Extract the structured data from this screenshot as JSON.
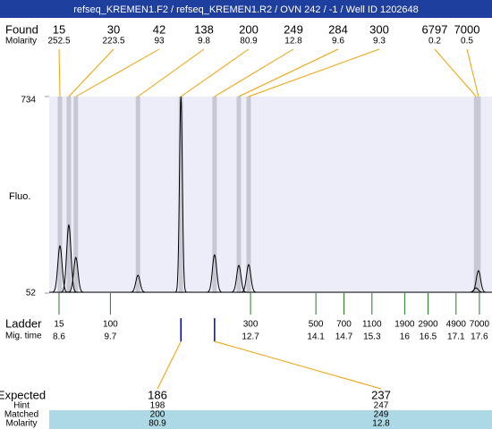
{
  "chart_data": {
    "type": "electropherogram",
    "title": "refseq_KREMEN1.F2 / refseq_KREMEN1.R2 / OVN 242 / -1 / Well ID 1202648",
    "found_label": "Found",
    "molarity_label": "Molarity",
    "y_label": "Fluo.",
    "ylim": [
      52,
      734
    ],
    "yticks": [
      52,
      734
    ],
    "xlim": [
      8.39,
      17.87
    ],
    "fragments": [
      {
        "size": 15,
        "molarity": 252.5,
        "time": 8.62,
        "height": 216
      },
      {
        "size": 30,
        "molarity": 223.5,
        "time": 8.81,
        "height": 288
      },
      {
        "size": 42,
        "molarity": 93,
        "time": 8.96,
        "height": 176
      },
      {
        "size": 138,
        "molarity": 9.8,
        "time": 10.29,
        "height": 114
      },
      {
        "size": 200,
        "molarity": 80.9,
        "time": 11.21,
        "height": 734
      },
      {
        "size": 249,
        "molarity": 12.8,
        "time": 11.93,
        "height": 185
      },
      {
        "size": 284,
        "molarity": 9.6,
        "time": 12.45,
        "height": 148
      },
      {
        "size": 300,
        "molarity": 9.3,
        "time": 12.66,
        "height": 151
      },
      {
        "size": 6797,
        "molarity": 0.2,
        "time": 17.53,
        "height": 70
      },
      {
        "size": 7000,
        "molarity": 0.5,
        "time": 17.58,
        "height": 130
      }
    ],
    "ladder_label": "Ladder",
    "time_label": "Mig. time",
    "ladder": {
      "sizes": [
        15,
        100,
        300,
        500,
        700,
        1100,
        1900,
        2900,
        4900,
        7000
      ],
      "times": [
        8.6,
        9.7,
        12.7,
        14.1,
        14.7,
        15.3,
        16,
        16.5,
        17.1,
        17.6
      ]
    },
    "expected_table": {
      "labels": [
        "Expected",
        "Hint",
        "Matched",
        "Molarity"
      ],
      "expected": [
        186,
        237
      ],
      "hint": [
        198,
        247
      ],
      "matched": [
        200,
        249
      ],
      "molarity": [
        80.9,
        12.8
      ],
      "matched_times": [
        11.21,
        11.93
      ]
    }
  }
}
